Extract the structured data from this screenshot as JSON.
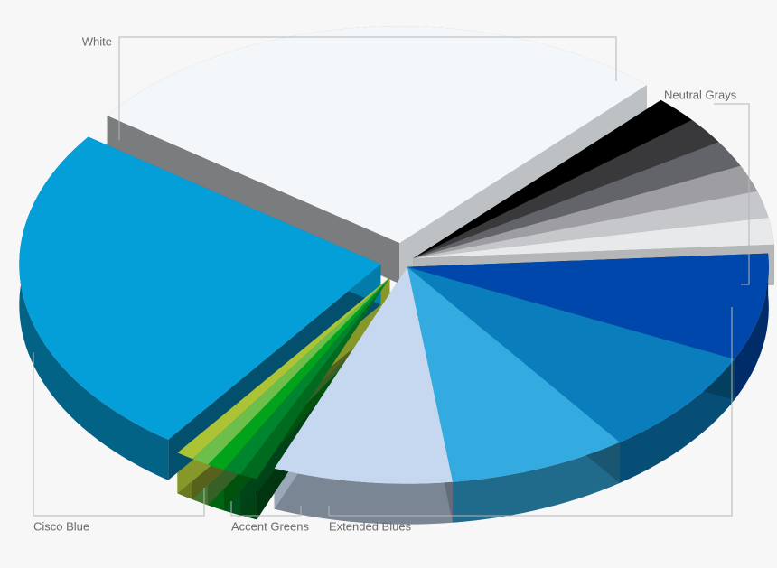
{
  "chart_data": {
    "type": "pie3d",
    "series": [
      {
        "name": "White",
        "values": [
          27
        ],
        "colors": [
          "#f4f7fa"
        ]
      },
      {
        "name": "Neutral Grays",
        "values": [
          2,
          2,
          2,
          2,
          2,
          2
        ],
        "colors": [
          "#000000",
          "#39393b",
          "#626469",
          "#9e9ea2",
          "#c6c7ca",
          "#e8e9ea"
        ]
      },
      {
        "name": "Extended Blues",
        "values": [
          8,
          8,
          8,
          8
        ],
        "colors": [
          "#0047ab",
          "#0a7dbd",
          "#34abe0",
          "#c6d8ef"
        ]
      },
      {
        "name": "Accent Greens",
        "values": [
          0.8,
          0.8,
          0.8,
          0.8,
          0.8
        ],
        "colors": [
          "#006a1e",
          "#00852f",
          "#00a31a",
          "#6cbf4a",
          "#abc335"
        ]
      },
      {
        "name": "Cisco Blue",
        "values": [
          25
        ],
        "colors": [
          "#049fd9"
        ]
      }
    ]
  }
}
